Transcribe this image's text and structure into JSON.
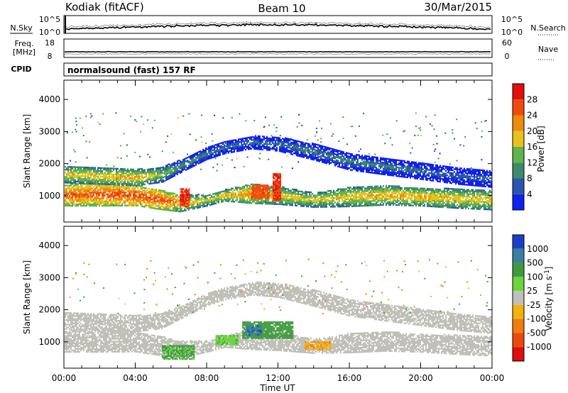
{
  "header": {
    "station": "Kodiak (fitACF)",
    "beam": "Beam 10",
    "date": "30/Mar/2015"
  },
  "panels": {
    "noise": {
      "left_label": "N.Sky",
      "right_label": "N.Search",
      "ytick_hi": "10^5",
      "ytick_lo": "10^0"
    },
    "freq": {
      "left_label_top": "Freq.",
      "left_label_unit": "[MHz]",
      "left_ticks": [
        "18",
        "8"
      ],
      "right_label": "Nave",
      "right_ticks": [
        "60",
        "0"
      ]
    },
    "cpid": {
      "label": "CPID",
      "text": "normalsound (fast) 157 RF"
    }
  },
  "chart_data": [
    {
      "type": "heatmap",
      "title": "",
      "xlabel": "Time UT",
      "ylabel": "Slant Range [km]",
      "x_ticks": [
        "00:00",
        "04:00",
        "08:00",
        "12:00",
        "16:00",
        "20:00",
        "00:00"
      ],
      "xlim_hours": [
        0,
        24
      ],
      "ylim": [
        180,
        4600
      ],
      "y_ticks": [
        1000,
        2000,
        3000,
        4000
      ],
      "colorbar": {
        "label": "Power [dB]",
        "ticks": [
          "4",
          "8",
          "12",
          "16",
          "20",
          "24",
          "28"
        ],
        "colors": [
          "#1020ee",
          "#2a55ac",
          "#3d8a6a",
          "#5fb54a",
          "#e7c21d",
          "#ee8a0d",
          "#f24a0d",
          "#e40d0d"
        ]
      },
      "scatter_bands": [
        {
          "name": "near band",
          "t": [
            0,
            2,
            4,
            5.5,
            6.5,
            8,
            9,
            10.5,
            12,
            14,
            16,
            18,
            20,
            22,
            24
          ],
          "range_km": [
            1000,
            1050,
            1000,
            850,
            750,
            850,
            1000,
            1050,
            1000,
            850,
            950,
            1000,
            950,
            900,
            850
          ],
          "width_km": [
            330,
            380,
            320,
            300,
            260,
            180,
            180,
            300,
            280,
            220,
            300,
            300,
            280,
            300,
            300
          ],
          "level_db": [
            26,
            26,
            27,
            26,
            22,
            18,
            20,
            23,
            20,
            19,
            20,
            21,
            21,
            20,
            20
          ]
        },
        {
          "name": "outer band",
          "t": [
            0,
            2,
            4,
            5.5,
            6.5,
            8,
            9,
            10.5,
            12,
            14,
            16,
            18,
            20,
            22,
            24
          ],
          "range_km": [
            1650,
            1600,
            1550,
            1650,
            1900,
            2300,
            2500,
            2650,
            2600,
            2350,
            2050,
            1900,
            1750,
            1600,
            1500
          ],
          "width_km": [
            260,
            250,
            250,
            240,
            200,
            180,
            200,
            200,
            220,
            250,
            260,
            260,
            250,
            250,
            250
          ],
          "level_db": [
            19,
            20,
            21,
            16,
            12,
            10,
            9,
            9,
            9,
            10,
            10,
            10,
            9,
            8,
            8
          ]
        }
      ],
      "patches": [
        {
          "t": [
            10.5,
            11.5
          ],
          "range_km": [
            900,
            1350
          ],
          "level_db": 27
        },
        {
          "t": [
            11.7,
            12.1
          ],
          "range_km": [
            850,
            1700
          ],
          "level_db": 28
        },
        {
          "t": [
            6.5,
            7.0
          ],
          "range_km": [
            650,
            1200
          ],
          "level_db": 28
        }
      ]
    },
    {
      "type": "heatmap",
      "title": "",
      "xlabel": "Time UT",
      "ylabel": "Slant Range [km]",
      "x_ticks": [
        "00:00",
        "04:00",
        "08:00",
        "12:00",
        "16:00",
        "20:00",
        "00:00"
      ],
      "xlim_hours": [
        0,
        24
      ],
      "ylim": [
        180,
        4600
      ],
      "y_ticks": [
        1000,
        2000,
        3000,
        4000
      ],
      "colorbar": {
        "label": "Velocity [m s",
        "label_sup": "-1",
        "label_end": "]",
        "ticks": [
          "1000",
          "500",
          "100",
          "25",
          "-25",
          "-100",
          "-500",
          "-1000"
        ],
        "colors": [
          "#1a3ec5",
          "#3a7fa0",
          "#3f9a3f",
          "#6cd43f",
          "#c0c0b8",
          "#f1b20f",
          "#f07c0c",
          "#ec4a0d",
          "#e00d0d"
        ]
      },
      "ground_scatter_color": "#c0c0b8",
      "velocity_patches": [
        {
          "t": [
            5.5,
            7.3
          ],
          "range_km": [
            450,
            900
          ],
          "velocity_ms": 120
        },
        {
          "t": [
            8.5,
            9.7
          ],
          "range_km": [
            900,
            1200
          ],
          "velocity_ms": 80
        },
        {
          "t": [
            10.0,
            12.8
          ],
          "range_km": [
            1100,
            1600
          ],
          "velocity_ms": 300
        },
        {
          "t": [
            10.2,
            11.0
          ],
          "range_km": [
            1200,
            1500
          ],
          "velocity_ms": 800
        },
        {
          "t": [
            13.5,
            15.0
          ],
          "range_km": [
            750,
            1000
          ],
          "velocity_ms": -90
        }
      ]
    }
  ]
}
